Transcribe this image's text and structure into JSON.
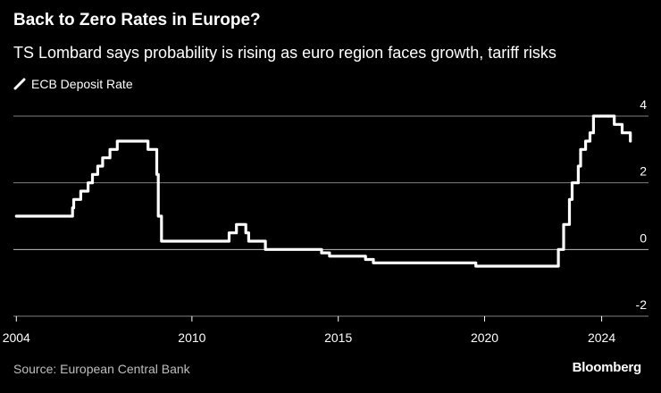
{
  "title": "Back to Zero Rates in Europe?",
  "subtitle": "TS Lombard says probability is rising as euro region faces growth, tariff risks",
  "source": "Source: European Central Bank",
  "brand": "Bloomberg",
  "colors": {
    "background": "#000000",
    "line": "#ffffff",
    "grid": "#7f7f7f"
  },
  "chart_data": {
    "type": "line",
    "title": "Back to Zero Rates in Europe?",
    "xlabel": "",
    "ylabel": "",
    "xlim": [
      2003.9,
      2025.6
    ],
    "ylim": [
      -2,
      4
    ],
    "xticks": [
      2004,
      2010,
      2015,
      2020,
      2024
    ],
    "yticks": [
      4,
      2,
      0,
      -2
    ],
    "grid": "horizontal",
    "legend": "top-left",
    "series": [
      {
        "name": "ECB Deposit Rate",
        "step": true,
        "x": [
          2004.0,
          2005.92,
          2005.96,
          2006.2,
          2006.45,
          2006.6,
          2006.78,
          2006.95,
          2007.2,
          2007.45,
          2008.5,
          2008.8,
          2008.85,
          2008.96,
          2009.05,
          2009.2,
          2009.28,
          2011.27,
          2011.52,
          2011.84,
          2011.94,
          2012.51,
          2014.43,
          2014.7,
          2015.93,
          2016.2,
          2019.7,
          2022.52,
          2022.7,
          2022.9,
          2022.99,
          2023.2,
          2023.28,
          2023.45,
          2023.6,
          2023.72,
          2024.43,
          2024.7,
          2024.98
        ],
        "values": [
          1.0,
          1.25,
          1.5,
          1.75,
          2.0,
          2.25,
          2.5,
          2.75,
          3.0,
          3.25,
          3.0,
          2.25,
          1.0,
          0.25,
          0.25,
          0.25,
          0.25,
          0.5,
          0.75,
          0.5,
          0.25,
          0.0,
          -0.1,
          -0.2,
          -0.3,
          -0.4,
          -0.5,
          0.0,
          0.75,
          1.5,
          2.0,
          2.5,
          3.0,
          3.25,
          3.5,
          4.0,
          3.75,
          3.5,
          3.25
        ]
      }
    ]
  }
}
